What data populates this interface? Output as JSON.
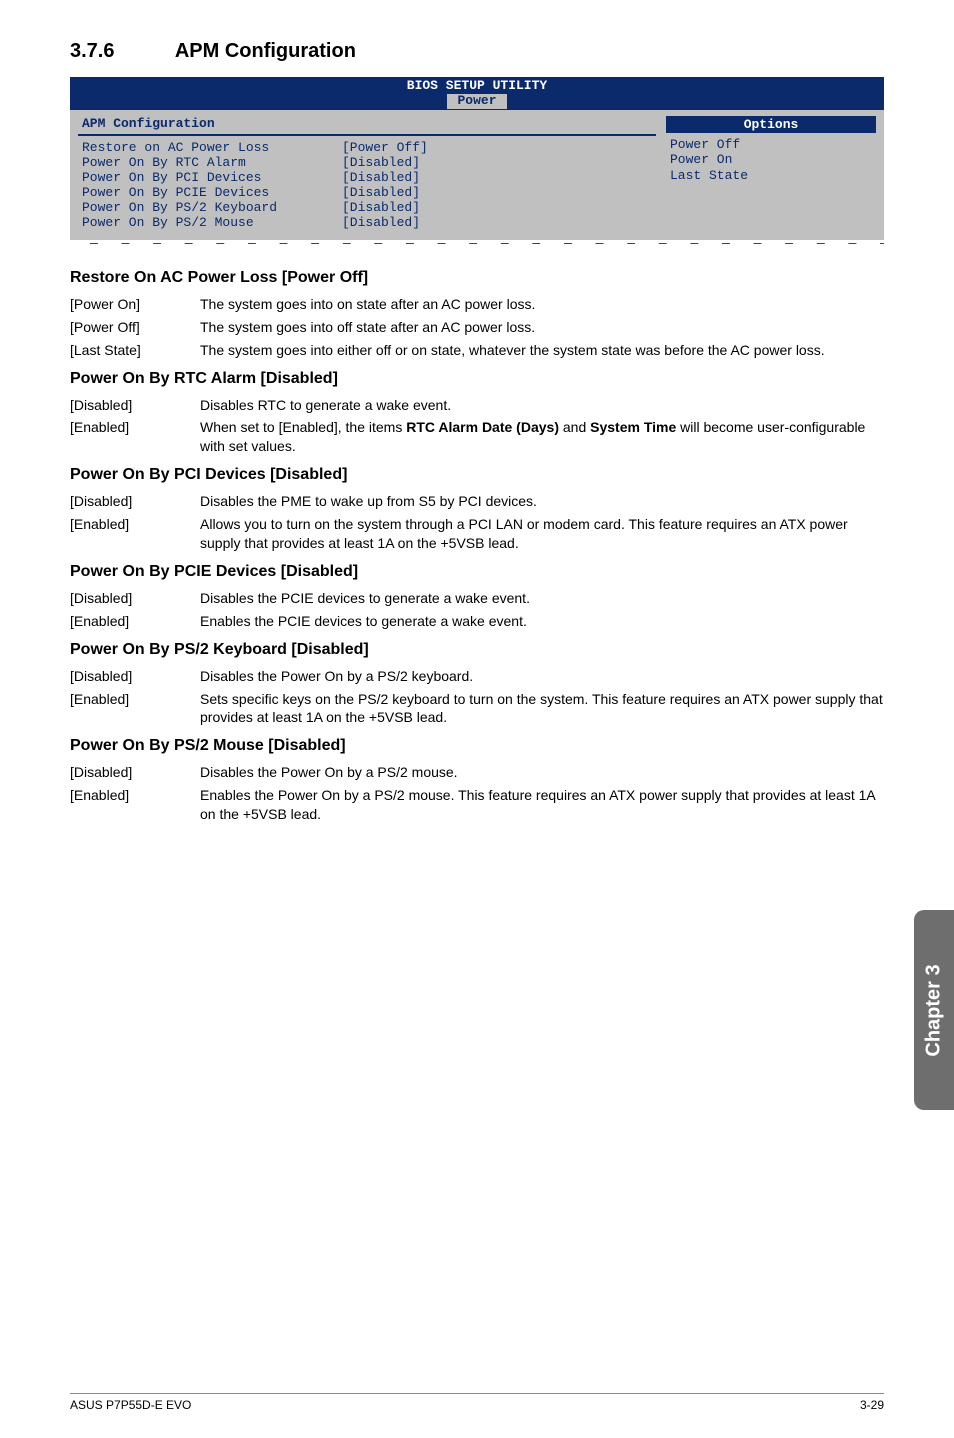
{
  "section": {
    "number": "3.7.6",
    "title": "APM Configuration"
  },
  "bios": {
    "header_title": "BIOS SETUP UTILITY",
    "tab": "Power",
    "panel_title": "APM Configuration",
    "colors": {
      "header_bg": "#0a2a6c",
      "body_bg": "#c0c0c0",
      "text": "#0a2a6c"
    },
    "rows": [
      {
        "label": "Restore on AC Power Loss",
        "value": "[Power Off]"
      },
      {
        "label": "Power On By RTC Alarm",
        "value": "[Disabled]"
      },
      {
        "label": "Power On By PCI Devices",
        "value": "[Disabled]"
      },
      {
        "label": "Power On By PCIE Devices",
        "value": "[Disabled]"
      },
      {
        "label": "Power On By PS/2 Keyboard",
        "value": "[Disabled]"
      },
      {
        "label": "Power On By PS/2 Mouse",
        "value": "[Disabled]"
      }
    ],
    "options_title": "Options",
    "options": [
      "Power Off",
      "Power On",
      "Last State"
    ]
  },
  "dashes": "— — — — — — — — — — — — — — — — — — — — — — — — — — — — — — — — — — — — — — —",
  "groups": [
    {
      "heading": "Restore On AC Power Loss [Power Off]",
      "items": [
        {
          "key": "[Power On]",
          "val": "The system goes into on state after an AC power loss."
        },
        {
          "key": "[Power Off]",
          "val": "The system goes into off state after an AC power loss."
        },
        {
          "key": "[Last State]",
          "val": "The system goes into either off or on state, whatever the system state was before the AC power loss."
        }
      ]
    },
    {
      "heading": "Power On By RTC Alarm [Disabled]",
      "items": [
        {
          "key": "[Disabled]",
          "val": "Disables RTC to generate a wake event."
        },
        {
          "key": "[Enabled]",
          "val": "When set to [Enabled], the items <b>RTC Alarm Date (Days)</b> and <b>System Time</b> will become user-configurable with set values."
        }
      ]
    },
    {
      "heading": "Power On By PCI Devices [Disabled]",
      "items": [
        {
          "key": "[Disabled]",
          "val": "Disables the PME to wake up from S5 by PCI devices."
        },
        {
          "key": "[Enabled]",
          "val": "Allows you to turn on the system through a PCI LAN or modem card. This feature requires an ATX power supply that provides at least 1A on the +5VSB lead."
        }
      ]
    },
    {
      "heading": "Power On By PCIE Devices [Disabled]",
      "items": [
        {
          "key": "[Disabled]",
          "val": "Disables the PCIE devices to generate a wake event."
        },
        {
          "key": "[Enabled]",
          "val": "Enables the PCIE devices to generate a wake event."
        }
      ]
    },
    {
      "heading": "Power On By PS/2 Keyboard [Disabled]",
      "items": [
        {
          "key": "[Disabled]",
          "val": "Disables the Power On by a PS/2 keyboard."
        },
        {
          "key": "[Enabled]",
          "val": "Sets specific keys on the PS/2 keyboard to turn on the system. This feature requires an ATX power supply that provides at least 1A on the +5VSB lead."
        }
      ]
    },
    {
      "heading": "Power On By PS/2 Mouse [Disabled]",
      "items": [
        {
          "key": "[Disabled]",
          "val": "Disables the Power On by a PS/2 mouse."
        },
        {
          "key": "[Enabled]",
          "val": "Enables the Power On by a PS/2 mouse. This feature requires an ATX power supply that provides at least 1A on the +5VSB lead."
        }
      ]
    }
  ],
  "side_tab": "Chapter 3",
  "footer": {
    "left": "ASUS P7P55D-E EVO",
    "right": "3-29"
  }
}
